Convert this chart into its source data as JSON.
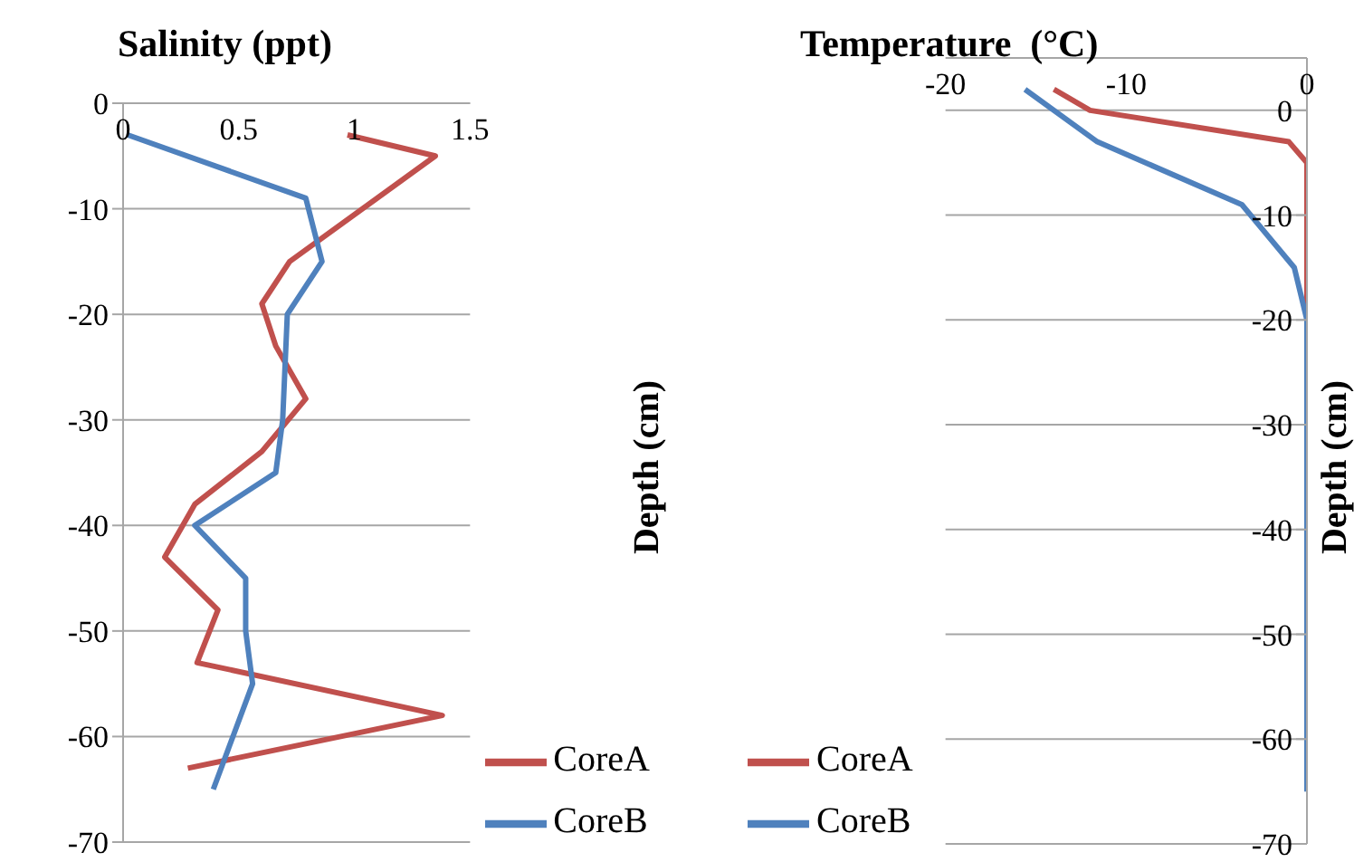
{
  "chart_data": [
    {
      "type": "line",
      "title": "Salinity (ppt)",
      "ylabel": "Depth (cm)",
      "xlim": [
        0,
        1.5
      ],
      "xticks": [
        0,
        0.5,
        1,
        1.5
      ],
      "ylim": [
        -70,
        0
      ],
      "yticks": [
        0,
        -10,
        -20,
        -30,
        -40,
        -50,
        -60,
        -70
      ],
      "grid": "y",
      "legend": "bottom right",
      "marker": "none",
      "series": [
        {
          "name": "CoreA",
          "color": "#c0504d",
          "x": [
            0.97,
            1.35,
            0.72,
            0.6,
            0.66,
            0.79,
            0.6,
            0.31,
            0.18,
            0.41,
            0.32,
            1.38,
            0.28
          ],
          "values": [
            -3,
            -5,
            -15,
            -19,
            -23,
            -28,
            -33,
            -38,
            -43,
            -48,
            -53,
            -58,
            -63
          ]
        },
        {
          "name": "CoreB",
          "color": "#4f81bd",
          "x": [
            0.02,
            0.79,
            0.86,
            0.71,
            0.69,
            0.66,
            0.31,
            0.53,
            0.53,
            0.56,
            0.39
          ],
          "values": [
            -3,
            -9,
            -15,
            -20,
            -30,
            -35,
            -40,
            -45,
            -50,
            -55,
            -65
          ]
        }
      ]
    },
    {
      "type": "line",
      "title": "Temperature  (°C)",
      "ylabel": "Depth (cm)",
      "xlim": [
        -20,
        0
      ],
      "xticks": [
        -20,
        -10,
        0
      ],
      "ylim": [
        -70,
        5
      ],
      "yticks": [
        0,
        -10,
        -20,
        -30,
        -40,
        -50,
        -60,
        -70
      ],
      "grid": "y",
      "legend": "bottom left",
      "marker": "none",
      "series": [
        {
          "name": "CoreA",
          "color": "#c0504d",
          "x": [
            -14,
            -12,
            -1,
            0,
            0
          ],
          "values": [
            2,
            0,
            -3,
            -5,
            -20
          ]
        },
        {
          "name": "CoreB",
          "color": "#4f81bd",
          "x": [
            -15.6,
            -11.6,
            -3.6,
            -0.7,
            0,
            0
          ],
          "values": [
            2,
            -3,
            -9,
            -15,
            -20,
            -65
          ]
        }
      ]
    }
  ]
}
